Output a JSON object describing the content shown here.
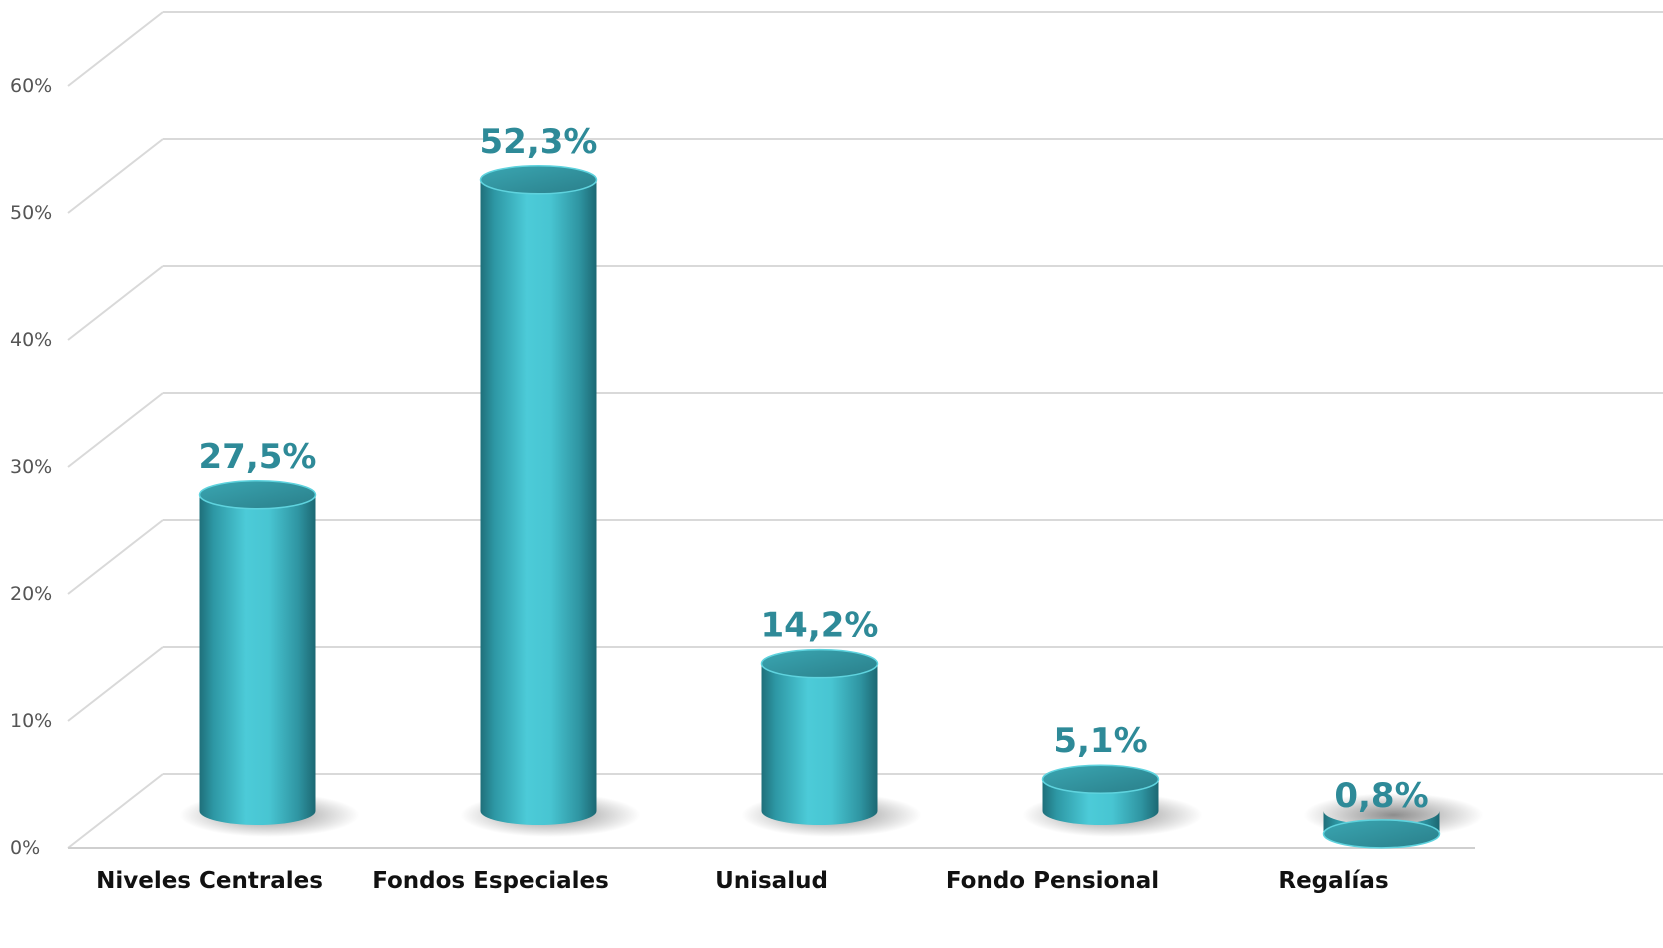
{
  "chart_data": {
    "type": "bar",
    "style": "3d-cylinder",
    "categories": [
      "Niveles Centrales",
      "Fondos Especiales",
      "Unisalud",
      "Fondo Pensional",
      "Regalías"
    ],
    "values": [
      27.5,
      52.3,
      14.2,
      5.1,
      0.8
    ],
    "data_labels": [
      "27,5%",
      "52,3%",
      "14,2%",
      "5,1%",
      "0,8%"
    ],
    "y_ticks": [
      0,
      10,
      20,
      30,
      40,
      50,
      60
    ],
    "y_tick_labels": [
      "0%",
      "10%",
      "20%",
      "30%",
      "40%",
      "50%",
      "60%"
    ],
    "ylim": [
      0,
      60
    ],
    "grid": true,
    "legend": "none",
    "colors": {
      "bar_light": "#4ccbd8",
      "bar_mid": "#36a9b6",
      "bar_dark": "#1f6f7a",
      "bar_top": "#2f8c97",
      "label": "#2e8a98",
      "grid": "#d9d9d9"
    }
  }
}
